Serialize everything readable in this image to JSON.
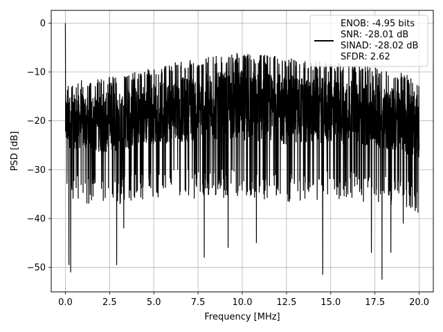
{
  "chart_data": {
    "type": "line",
    "title": "",
    "xlabel": "Frequency [MHz]",
    "ylabel": "PSD [dB]",
    "xlim": [
      -0.8,
      20.8
    ],
    "ylim": [
      -55,
      2.6
    ],
    "x_ticks": [
      0.0,
      2.5,
      5.0,
      7.5,
      10.0,
      12.5,
      15.0,
      17.5,
      20.0
    ],
    "x_tick_labels": [
      "0.0",
      "2.5",
      "5.0",
      "7.5",
      "10.0",
      "12.5",
      "15.0",
      "17.5",
      "20.0"
    ],
    "y_ticks": [
      0,
      -10,
      -20,
      -30,
      -40,
      -50
    ],
    "y_tick_labels": [
      "0",
      "−10",
      "−20",
      "−30",
      "−40",
      "−50"
    ],
    "grid": true,
    "legend_position": "top-right",
    "legend_lines": [
      "ENOB: -4.95 bits",
      "SNR: -28.01 dB",
      "SINAD: -28.02 dB",
      "SFDR: 2.62"
    ],
    "line_color": "#000000",
    "signal": {
      "description": "dense noise-like power spectral density, ~20 dB wide envelope",
      "x_start": 0.0,
      "x_end": 20.0,
      "peak": {
        "x": 0.0,
        "y": 0.0
      },
      "upper_envelope": [
        [
          0.0,
          -12
        ],
        [
          2.5,
          -11
        ],
        [
          5.0,
          -9
        ],
        [
          7.5,
          -7
        ],
        [
          10.0,
          -6
        ],
        [
          12.5,
          -7
        ],
        [
          15.0,
          -8
        ],
        [
          17.5,
          -9
        ],
        [
          20.0,
          -11
        ]
      ],
      "lower_envelope": [
        [
          0.0,
          -30
        ],
        [
          2.5,
          -32
        ],
        [
          5.0,
          -30
        ],
        [
          7.5,
          -30
        ],
        [
          10.0,
          -30
        ],
        [
          12.5,
          -31
        ],
        [
          15.0,
          -30
        ],
        [
          17.5,
          -31
        ],
        [
          20.0,
          -33
        ]
      ],
      "deep_dips": [
        [
          0.3,
          -51
        ],
        [
          0.2,
          -49.5
        ],
        [
          2.9,
          -49.5
        ],
        [
          3.3,
          -42
        ],
        [
          7.85,
          -48
        ],
        [
          9.2,
          -46
        ],
        [
          10.8,
          -45
        ],
        [
          14.55,
          -51.5
        ],
        [
          17.3,
          -47
        ],
        [
          17.9,
          -52.5
        ],
        [
          18.4,
          -47
        ],
        [
          19.1,
          -41
        ]
      ]
    }
  }
}
